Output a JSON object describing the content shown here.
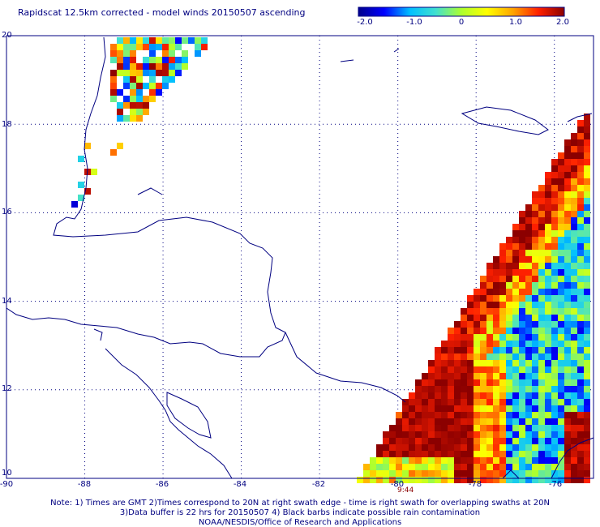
{
  "title": "Rapidscat 12.5km corrected - model winds 20150507 ascending",
  "colorbar": {
    "labels": [
      "-2.0",
      "-1.0",
      "0",
      "1.0",
      "2.0"
    ],
    "stops": [
      "#00008b",
      "#0000ff",
      "#00bfff",
      "#40e0d0",
      "#adff2f",
      "#ffff00",
      "#ffa500",
      "#ff2000",
      "#8b0000"
    ]
  },
  "map": {
    "lon_range": [
      -90,
      -75
    ],
    "lat_range": [
      10,
      20
    ],
    "lon_ticks": [
      "-90",
      "-88",
      "-86",
      "-84",
      "-82",
      "-80",
      "-78",
      "-76"
    ],
    "lat_ticks": [
      "20",
      "18",
      "16",
      "14",
      "12",
      "10"
    ],
    "coast_color": "#000080",
    "grid_color": "#000080"
  },
  "time_label": "9:44",
  "notes": [
    "Note: 1) Times are GMT 2)Times correspond to 20N at right swath edge - time is right swath for overlapping swaths at 20N",
    "3)Data buffer is 22 hrs for 20150507 4) Black barbs indicate possible rain contamination",
    "NOAA/NESDIS/Office of Research and Applications"
  ]
}
